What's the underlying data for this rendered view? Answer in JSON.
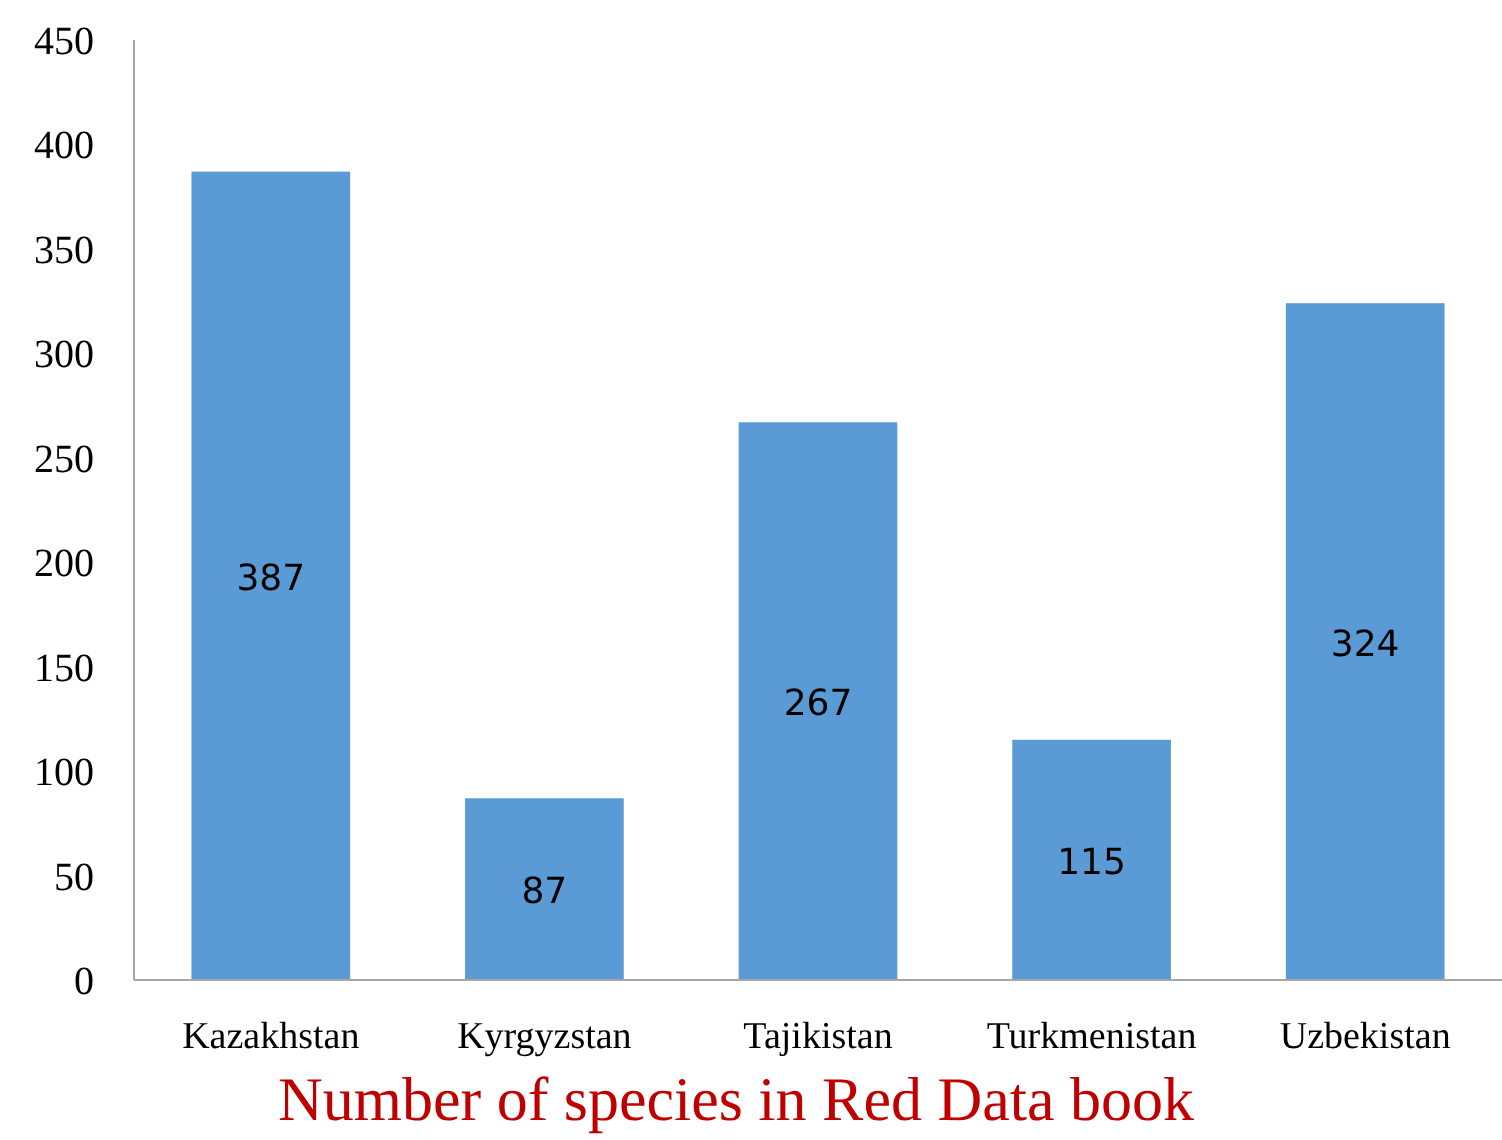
{
  "chart_data": {
    "type": "bar",
    "annotations": [
      "Number of species in Red Data book"
    ],
    "categories": [
      "Kazakhstan",
      "Kyrgyzstan",
      "Tajikistan",
      "Turkmenistan",
      "Uzbekistan"
    ],
    "values": [
      387,
      87,
      267,
      115,
      324
    ],
    "color": "#5b9bd5",
    "ylim": [
      0,
      450
    ],
    "yticks": [
      0,
      50,
      100,
      150,
      200,
      250,
      300,
      350,
      400,
      450
    ],
    "data_labels": true,
    "grid": false
  }
}
